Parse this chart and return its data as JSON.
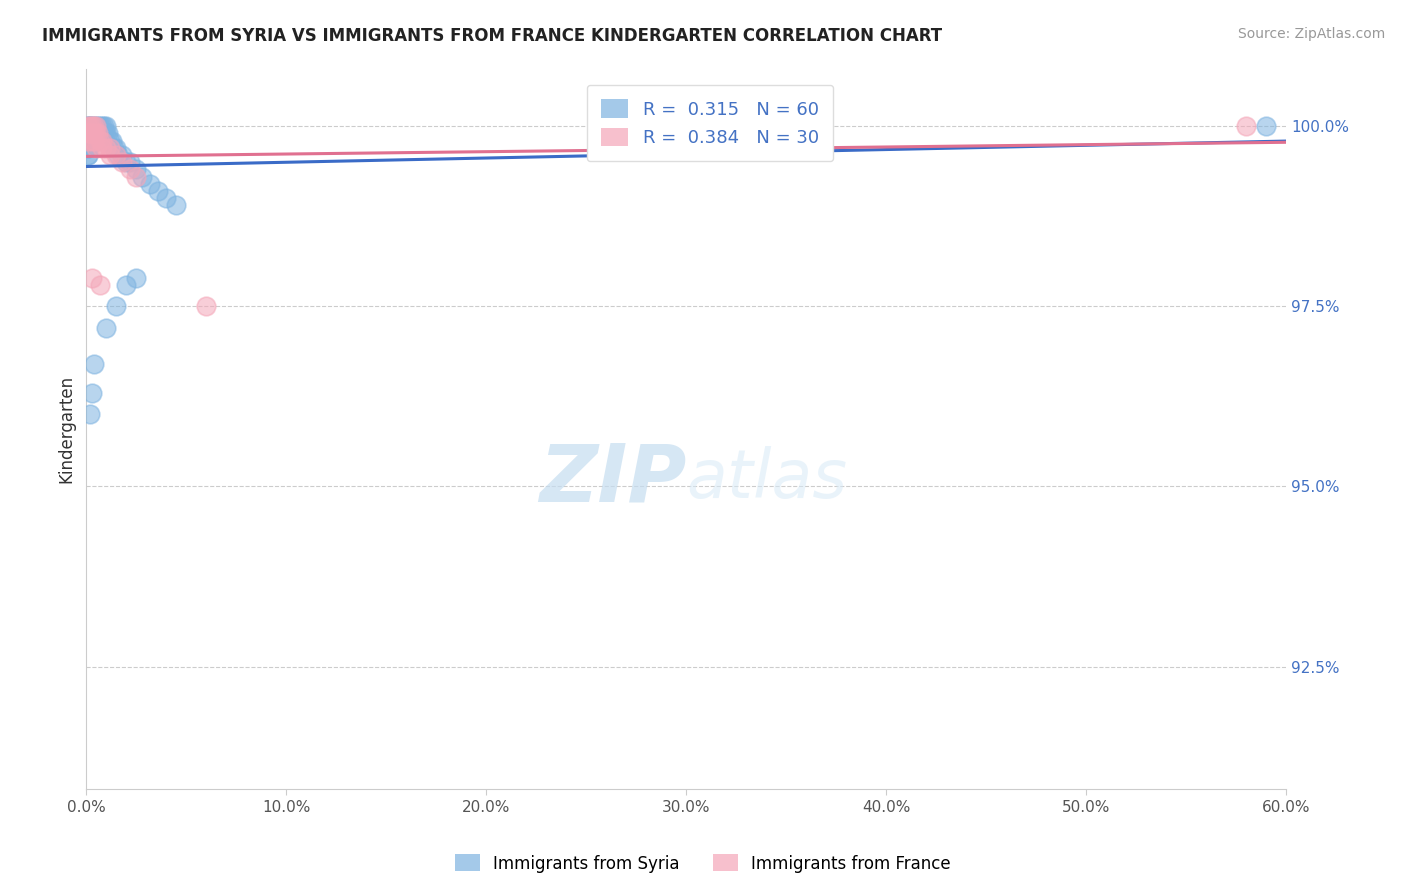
{
  "title": "IMMIGRANTS FROM SYRIA VS IMMIGRANTS FROM FRANCE KINDERGARTEN CORRELATION CHART",
  "source_text": "Source: ZipAtlas.com",
  "ylabel": "Kindergarten",
  "x_min": 0.0,
  "x_max": 0.6,
  "y_min": 0.908,
  "y_max": 1.008,
  "x_ticks": [
    0.0,
    0.1,
    0.2,
    0.3,
    0.4,
    0.5,
    0.6
  ],
  "x_tick_labels": [
    "0.0%",
    "10.0%",
    "20.0%",
    "30.0%",
    "40.0%",
    "50.0%",
    "60.0%"
  ],
  "y_ticks": [
    0.925,
    0.95,
    0.975,
    1.0
  ],
  "y_tick_labels": [
    "92.5%",
    "95.0%",
    "97.5%",
    "100.0%"
  ],
  "grid_color": "#cccccc",
  "background_color": "#ffffff",
  "syria_color": "#7eb3e0",
  "france_color": "#f4a6b8",
  "syria_line_color": "#3a6bc7",
  "france_line_color": "#e07090",
  "syria_R": 0.315,
  "syria_N": 60,
  "france_R": 0.384,
  "france_N": 30,
  "legend_label_syria": "Immigrants from Syria",
  "legend_label_france": "Immigrants from France",
  "watermark_zip": "ZIP",
  "watermark_atlas": "atlas",
  "syria_x": [
    0.001,
    0.001,
    0.001,
    0.001,
    0.001,
    0.001,
    0.001,
    0.001,
    0.001,
    0.001,
    0.002,
    0.002,
    0.002,
    0.002,
    0.002,
    0.002,
    0.003,
    0.003,
    0.003,
    0.003,
    0.003,
    0.004,
    0.004,
    0.004,
    0.005,
    0.005,
    0.005,
    0.006,
    0.006,
    0.007,
    0.007,
    0.008,
    0.008,
    0.009,
    0.009,
    0.01,
    0.01,
    0.011,
    0.012,
    0.013,
    0.014,
    0.015,
    0.016,
    0.018,
    0.02,
    0.022,
    0.025,
    0.028,
    0.032,
    0.036,
    0.04,
    0.045,
    0.002,
    0.003,
    0.004,
    0.01,
    0.015,
    0.02,
    0.025,
    0.59
  ],
  "syria_y": [
    1.0,
    1.0,
    0.999,
    0.999,
    0.998,
    0.998,
    0.997,
    0.997,
    0.996,
    0.996,
    1.0,
    1.0,
    0.999,
    0.999,
    0.998,
    0.998,
    1.0,
    0.999,
    0.999,
    0.998,
    0.998,
    1.0,
    0.999,
    0.998,
    1.0,
    0.999,
    0.998,
    1.0,
    0.999,
    1.0,
    0.999,
    1.0,
    0.999,
    1.0,
    0.999,
    1.0,
    0.999,
    0.999,
    0.998,
    0.998,
    0.997,
    0.997,
    0.996,
    0.996,
    0.995,
    0.995,
    0.994,
    0.993,
    0.992,
    0.991,
    0.99,
    0.989,
    0.96,
    0.963,
    0.967,
    0.972,
    0.975,
    0.978,
    0.979,
    1.0
  ],
  "france_x": [
    0.001,
    0.001,
    0.001,
    0.002,
    0.002,
    0.003,
    0.003,
    0.004,
    0.004,
    0.005,
    0.005,
    0.006,
    0.007,
    0.008,
    0.01,
    0.012,
    0.015,
    0.018,
    0.022,
    0.025,
    0.002,
    0.003,
    0.004,
    0.005,
    0.008,
    0.012,
    0.06,
    0.58,
    0.003,
    0.007
  ],
  "france_y": [
    1.0,
    0.999,
    0.998,
    1.0,
    0.999,
    1.0,
    0.999,
    1.0,
    0.999,
    1.0,
    0.999,
    0.999,
    0.998,
    0.998,
    0.997,
    0.997,
    0.996,
    0.995,
    0.994,
    0.993,
    0.999,
    0.998,
    0.998,
    0.997,
    0.997,
    0.996,
    0.975,
    1.0,
    0.979,
    0.978
  ]
}
